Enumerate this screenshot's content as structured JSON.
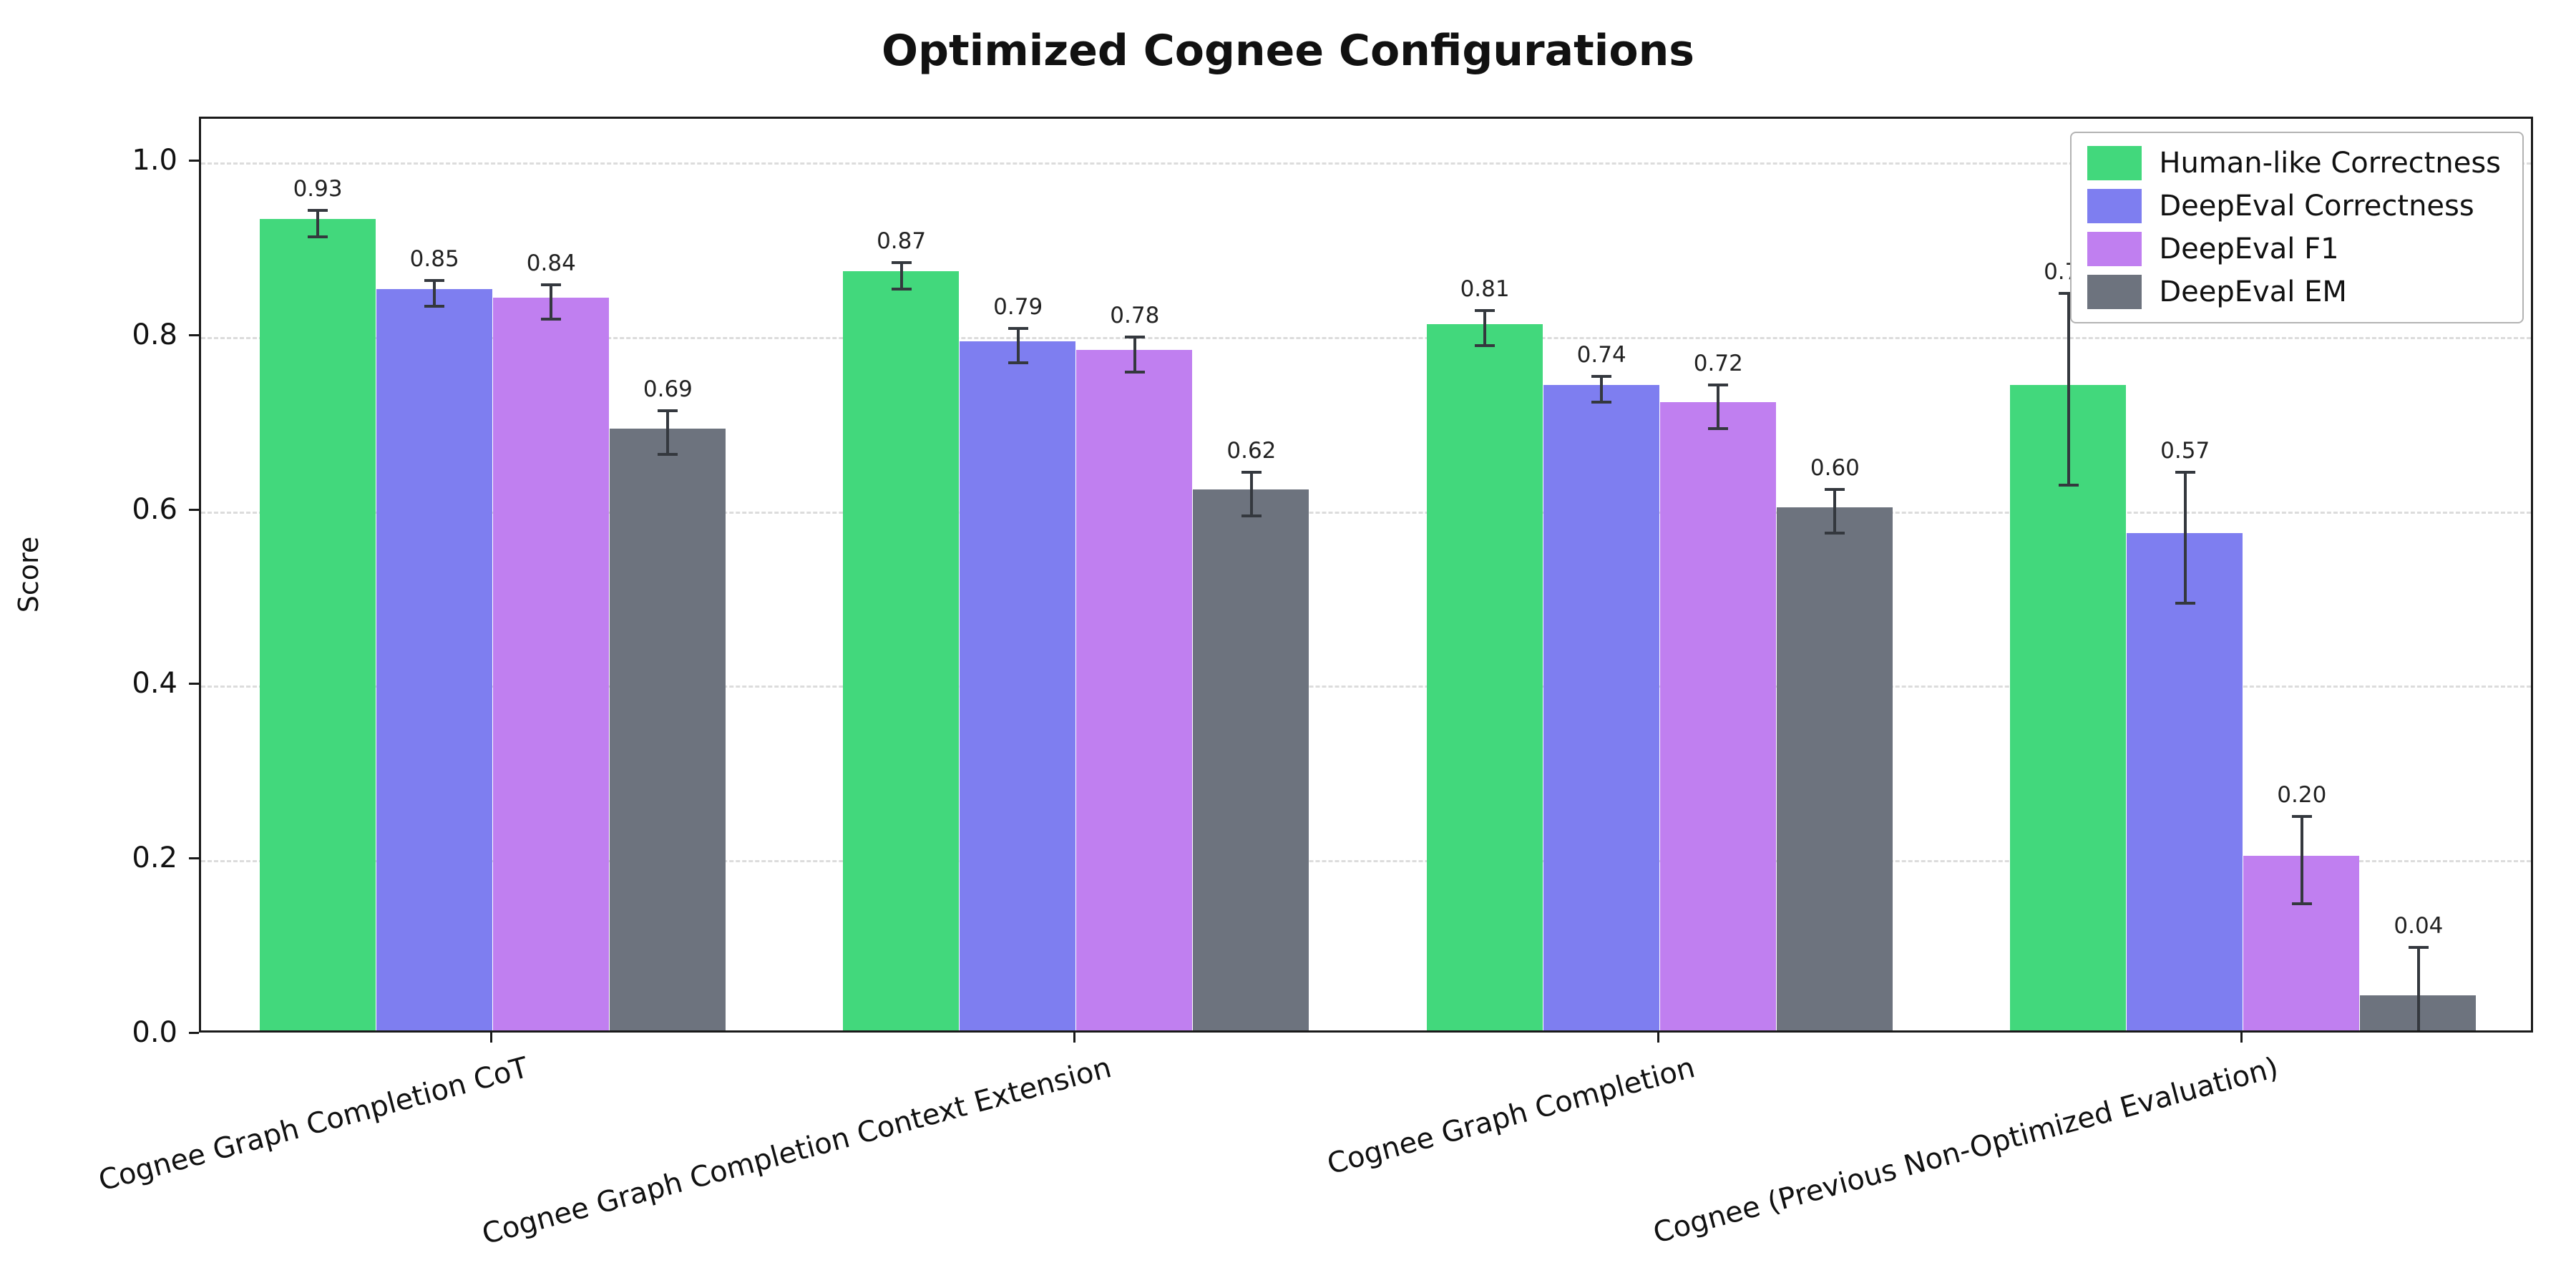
{
  "chart_data": {
    "type": "bar",
    "title": "Optimized Cognee Configurations",
    "xlabel": "",
    "ylabel": "Score",
    "ylim": [
      0,
      1.05
    ],
    "yticks": [
      0.0,
      0.2,
      0.4,
      0.6,
      0.8,
      1.0
    ],
    "grid": "horizontal-dashed",
    "legend_position": "upper-right",
    "error_bars": true,
    "categories": [
      "Cognee Graph Completion CoT",
      "Cognee Graph Completion Context Extension",
      "Cognee Graph Completion",
      "Cognee (Previous Non-Optimized Evaluation)"
    ],
    "series": [
      {
        "name": "Human-like Correctness",
        "color": "#42d87c",
        "values": [
          0.93,
          0.87,
          0.81,
          0.74
        ],
        "errors": [
          0.015,
          0.015,
          0.02,
          0.11
        ]
      },
      {
        "name": "DeepEval Correctness",
        "color": "#7e7ef0",
        "values": [
          0.85,
          0.79,
          0.74,
          0.57
        ],
        "errors": [
          0.015,
          0.02,
          0.015,
          0.075
        ]
      },
      {
        "name": "DeepEval F1",
        "color": "#c07ff0",
        "values": [
          0.84,
          0.78,
          0.72,
          0.2
        ],
        "errors": [
          0.02,
          0.02,
          0.025,
          0.05
        ]
      },
      {
        "name": "DeepEval EM",
        "color": "#6d737e",
        "values": [
          0.69,
          0.62,
          0.6,
          0.04
        ],
        "errors": [
          0.025,
          0.025,
          0.025,
          0.06
        ]
      }
    ],
    "axis_color": "#1a1a1a",
    "grid_color": "#dcdcdc",
    "error_bar_color": "#34383e"
  }
}
